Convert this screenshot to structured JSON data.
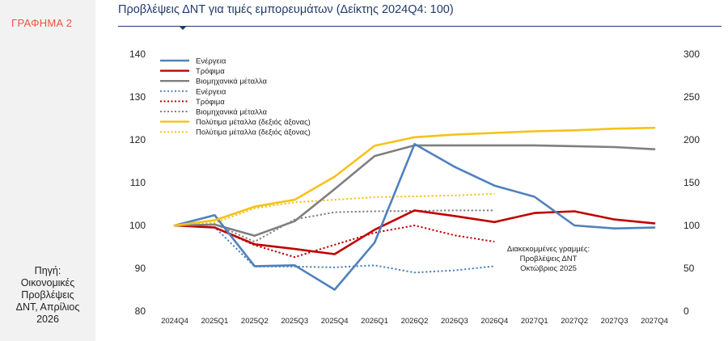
{
  "sidebar": {
    "chart_label": "ΓΡΑΦΗΜΑ 2",
    "source": "Πηγή:\nΟικονομικές\nΠροβλέψεις\nΔΝΤ, Απρίλιος\n2026"
  },
  "colors": {
    "energy": "#4f81bd",
    "food": "#c00000",
    "metals": "#7f7f7f",
    "precious": "#f5c21b",
    "title": "#1f3a6a"
  },
  "chart_data": {
    "type": "line",
    "title": "Προβλέψεις ΔΝΤ για τιμές εμπορευμάτων (Δείκτης 2024Q4: 100)",
    "categories": [
      "2024Q4",
      "2025Q1",
      "2025Q2",
      "2025Q3",
      "2025Q4",
      "2026Q1",
      "2026Q2",
      "2026Q3",
      "2026Q4",
      "2027Q1",
      "2027Q2",
      "2027Q3",
      "2027Q4"
    ],
    "y_left": {
      "min": 80,
      "max": 140,
      "ticks": [
        80,
        90,
        100,
        110,
        120,
        130,
        140
      ]
    },
    "y_right": {
      "min": 0,
      "max": 300,
      "ticks": [
        0,
        50,
        100,
        150,
        200,
        250,
        300
      ]
    },
    "legend_position": "top-left",
    "grid": false,
    "series": [
      {
        "name": "Ενέργεια",
        "color_key": "energy",
        "dashed": false,
        "axis": "left",
        "values": [
          100,
          102.4,
          90.5,
          90.7,
          85,
          96,
          119,
          113.7,
          109.3,
          106.7,
          100,
          99.3,
          99.5
        ]
      },
      {
        "name": "Τρόφιμα",
        "color_key": "food",
        "dashed": false,
        "axis": "left",
        "values": [
          100,
          99.5,
          95.6,
          94.5,
          93.3,
          99,
          103.5,
          102.2,
          100.8,
          102.9,
          103.3,
          101.4,
          100.5
        ]
      },
      {
        "name": "Βιομηχανικά μέταλλα",
        "color_key": "metals",
        "dashed": false,
        "axis": "left",
        "values": [
          100,
          100.2,
          97.6,
          101,
          108.5,
          116.2,
          118.7,
          118.7,
          118.7,
          118.7,
          118.5,
          118.3,
          117.8
        ]
      },
      {
        "name": "Ενέργεια",
        "color_key": "energy",
        "dashed": true,
        "axis": "left",
        "values": [
          100,
          99.6,
          90.4,
          90.4,
          90.2,
          90.7,
          89,
          89.5,
          90.5,
          null,
          null,
          null,
          null
        ]
      },
      {
        "name": "Τρόφιμα",
        "color_key": "food",
        "dashed": true,
        "axis": "left",
        "values": [
          100,
          99.5,
          95.4,
          92.6,
          95.5,
          98.3,
          100,
          97.7,
          96.2,
          null,
          null,
          null,
          null
        ]
      },
      {
        "name": "Βιομηχανικά μέταλλα",
        "color_key": "metals",
        "dashed": true,
        "axis": "left",
        "values": [
          100,
          100.3,
          96.2,
          101.4,
          103.1,
          103.3,
          103.4,
          103.5,
          103.5,
          null,
          null,
          null,
          null
        ]
      },
      {
        "name": "Πολύτιμα μέταλλα (δεξιός άξονας)",
        "color_key": "precious",
        "dashed": false,
        "axis": "right",
        "values": [
          100,
          106,
          122,
          130,
          157,
          193,
          203,
          206,
          208,
          210,
          211,
          213,
          214
        ]
      },
      {
        "name": "Πολύτιμα μέταλλα (δεξιός άξονας)",
        "color_key": "precious",
        "dashed": true,
        "axis": "right",
        "values": [
          100,
          103,
          120,
          127,
          130,
          133,
          134,
          135,
          137,
          null,
          null,
          null,
          null
        ]
      }
    ],
    "annotation": "Διακεκομμένες  γραμμές:\nΠροβλέψεις ΔΝΤ\nΟκτώβριος 2025"
  }
}
